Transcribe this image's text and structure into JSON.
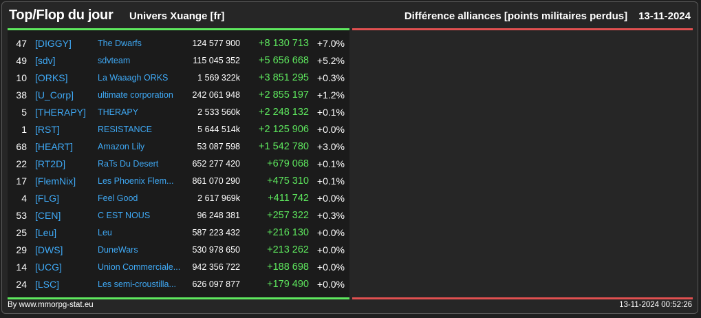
{
  "header": {
    "title": "Top/Flop du jour",
    "universe": "Univers Xuange [fr]",
    "subject": "Différence alliances [points militaires perdus]",
    "date": "13-11-2024"
  },
  "colors": {
    "top_accent": "#5ee85e",
    "flop_accent": "#e05050",
    "link": "#3fa9f5"
  },
  "top_rows": [
    {
      "rank": "47",
      "tag": "[DIGGY]",
      "name": "The Dwarfs",
      "points": "124 577 900",
      "diff": "+8 130 713",
      "pct": "+7.0%"
    },
    {
      "rank": "49",
      "tag": "[sdv]",
      "name": "sdvteam",
      "points": "115 045 352",
      "diff": "+5 656 668",
      "pct": "+5.2%"
    },
    {
      "rank": "10",
      "tag": "[ORKS]",
      "name": "La Waaagh ORKS",
      "points": "1 569 322k",
      "diff": "+3 851 295",
      "pct": "+0.3%"
    },
    {
      "rank": "38",
      "tag": "[U_Corp]",
      "name": "ultimate corporation",
      "points": "242 061 948",
      "diff": "+2 855 197",
      "pct": "+1.2%"
    },
    {
      "rank": "5",
      "tag": "[THERAPY]",
      "name": "THERAPY",
      "points": "2 533 560k",
      "diff": "+2 248 132",
      "pct": "+0.1%"
    },
    {
      "rank": "1",
      "tag": "[RST]",
      "name": "RESISTANCE",
      "points": "5 644 514k",
      "diff": "+2 125 906",
      "pct": "+0.0%"
    },
    {
      "rank": "68",
      "tag": "[HEART]",
      "name": "Amazon Lily",
      "points": "53 087 598",
      "diff": "+1 542 780",
      "pct": "+3.0%"
    },
    {
      "rank": "22",
      "tag": "[RT2D]",
      "name": "RaTs Du Desert",
      "points": "652 277 420",
      "diff": "+679 068",
      "pct": "+0.1%"
    },
    {
      "rank": "17",
      "tag": "[FlemNix]",
      "name": "Les Phoenix Flem...",
      "points": "861 070 290",
      "diff": "+475 310",
      "pct": "+0.1%"
    },
    {
      "rank": "4",
      "tag": "[FLG]",
      "name": "Feel Good",
      "points": "2 617 969k",
      "diff": "+411 742",
      "pct": "+0.0%"
    },
    {
      "rank": "53",
      "tag": "[CEN]",
      "name": "C EST NOUS",
      "points": "96 248 381",
      "diff": "+257 322",
      "pct": "+0.3%"
    },
    {
      "rank": "25",
      "tag": "[Leu]",
      "name": "Leu",
      "points": "587 223 432",
      "diff": "+216 130",
      "pct": "+0.0%"
    },
    {
      "rank": "29",
      "tag": "[DWS]",
      "name": "DuneWars",
      "points": "530 978 650",
      "diff": "+213 262",
      "pct": "+0.0%"
    },
    {
      "rank": "14",
      "tag": "[UCG]",
      "name": "Union Commerciale...",
      "points": "942 356 722",
      "diff": "+188 698",
      "pct": "+0.0%"
    },
    {
      "rank": "24",
      "tag": "[LSC]",
      "name": "Les semi-croustilla...",
      "points": "626 097 877",
      "diff": "+179 490",
      "pct": "+0.0%"
    }
  ],
  "footer": {
    "source": "By www.mmorpg-stat.eu",
    "timestamp": "13-11-2024 00:52:26"
  }
}
